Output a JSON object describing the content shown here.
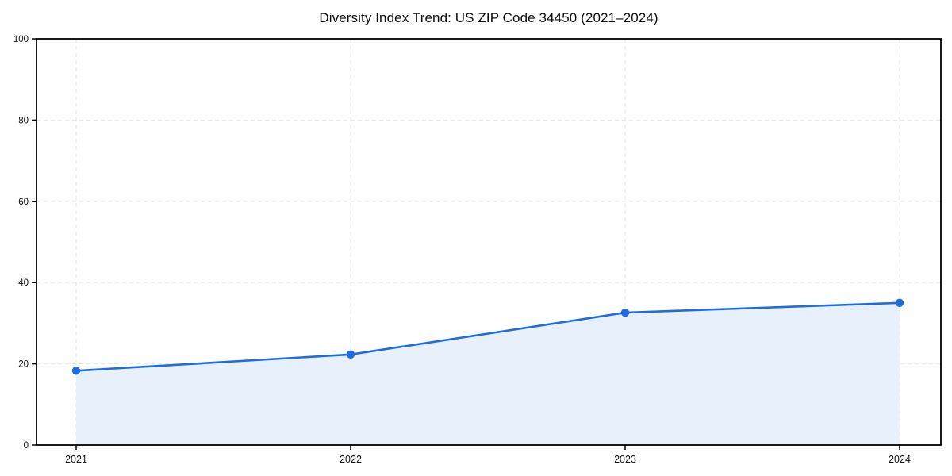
{
  "chart": {
    "title": "Diversity Index Trend: US ZIP Code 34450 (2021–2024)"
  },
  "chart_data": {
    "type": "area",
    "title": "Diversity Index Trend: US ZIP Code 34450 (2021–2024)",
    "x": [
      "2021",
      "2022",
      "2023",
      "2024"
    ],
    "values": [
      18.3,
      22.3,
      32.6,
      35.0
    ],
    "series_name": "Diversity Index",
    "xlabel": "",
    "ylabel": "",
    "ylim": [
      0,
      100
    ],
    "yticks": [
      0,
      20,
      40,
      60,
      80,
      100
    ],
    "grid": true,
    "grid_style": "dashed",
    "legend_position": "none",
    "marker": "circle",
    "colors": {
      "line": "#1d6ce0",
      "marker": "#1d6ce0",
      "fill": "#e8f0fc",
      "grid": "#e6e6e6",
      "axis": "#000000",
      "tick_text": "#111111",
      "background": "#ffffff"
    }
  }
}
